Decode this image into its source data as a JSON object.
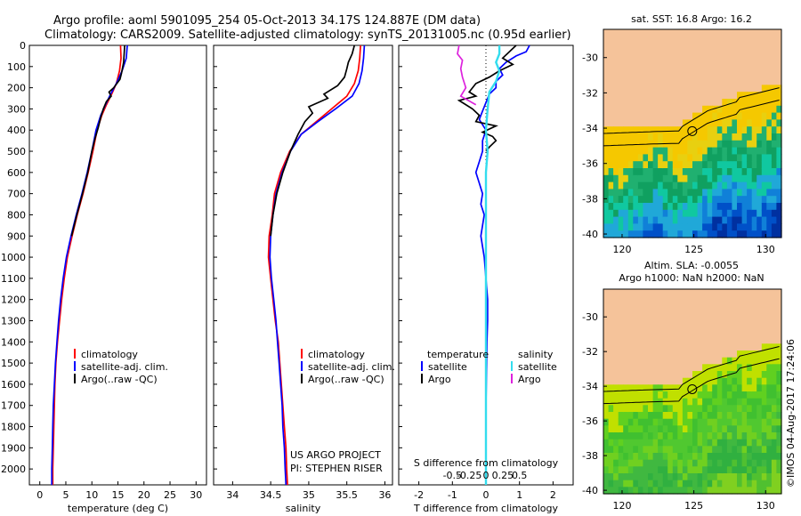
{
  "title": {
    "line1": "Argo profile: aoml 5901095_254 05-Oct-2013 34.17S 124.887E (DM data)",
    "line2": "Climatology: CARS2009. Satellite-adjusted climatology: synTS_20131005.nc (0.95d earlier)"
  },
  "colors": {
    "climatology": "#ff0000",
    "satellite": "#0000ff",
    "argo": "#000000",
    "satellite_salinity": "#33ddee",
    "argo_salinity": "#dd22dd",
    "land": "#f5c39a"
  },
  "chart_data": [
    {
      "type": "line",
      "id": "temperature",
      "xlabel": "temperature (deg C)",
      "xlim": [
        -2,
        32
      ],
      "ylim": [
        2075,
        0
      ],
      "xticks": [
        0,
        5,
        10,
        15,
        20,
        25,
        30
      ],
      "yticks": [
        0,
        100,
        200,
        300,
        400,
        500,
        600,
        700,
        800,
        900,
        1000,
        1100,
        1200,
        1300,
        1400,
        1500,
        1600,
        1700,
        1800,
        1900,
        2000
      ],
      "legend": [
        "climatology",
        "satellite-adj. clim.",
        "Argo(..raw -QC)"
      ],
      "series": [
        {
          "name": "climatology",
          "color": "#ff0000",
          "points": [
            [
              15.5,
              0
            ],
            [
              15.6,
              60
            ],
            [
              15.3,
              120
            ],
            [
              14.7,
              180
            ],
            [
              13.8,
              230
            ],
            [
              12.8,
              280
            ],
            [
              11.9,
              330
            ],
            [
              11.0,
              400
            ],
            [
              10.2,
              500
            ],
            [
              9.3,
              600
            ],
            [
              8.3,
              700
            ],
            [
              7.2,
              800
            ],
            [
              6.2,
              900
            ],
            [
              5.3,
              1000
            ],
            [
              4.7,
              1100
            ],
            [
              4.2,
              1200
            ],
            [
              3.8,
              1300
            ],
            [
              3.4,
              1400
            ],
            [
              3.1,
              1500
            ],
            [
              2.9,
              1600
            ],
            [
              2.8,
              1700
            ],
            [
              2.7,
              1800
            ],
            [
              2.6,
              1900
            ],
            [
              2.5,
              2000
            ],
            [
              2.5,
              2075
            ]
          ]
        },
        {
          "name": "satellite-adj. clim.",
          "color": "#0000ff",
          "points": [
            [
              16.8,
              0
            ],
            [
              16.6,
              60
            ],
            [
              15.8,
              120
            ],
            [
              14.7,
              180
            ],
            [
              13.6,
              230
            ],
            [
              12.6,
              280
            ],
            [
              11.7,
              330
            ],
            [
              10.8,
              400
            ],
            [
              10.0,
              500
            ],
            [
              9.1,
              600
            ],
            [
              8.1,
              700
            ],
            [
              7.0,
              800
            ],
            [
              6.0,
              900
            ],
            [
              5.1,
              1000
            ],
            [
              4.5,
              1100
            ],
            [
              4.0,
              1200
            ],
            [
              3.6,
              1300
            ],
            [
              3.3,
              1400
            ],
            [
              3.0,
              1500
            ],
            [
              2.8,
              1600
            ],
            [
              2.6,
              1700
            ],
            [
              2.5,
              1800
            ],
            [
              2.4,
              1900
            ],
            [
              2.3,
              2000
            ],
            [
              2.3,
              2075
            ]
          ]
        },
        {
          "name": "Argo(..raw -QC)",
          "color": "#000000",
          "points": [
            [
              16.3,
              0
            ],
            [
              16.2,
              40
            ],
            [
              16.1,
              80
            ],
            [
              15.7,
              130
            ],
            [
              15.4,
              160
            ],
            [
              14.2,
              200
            ],
            [
              13.3,
              220
            ],
            [
              13.7,
              240
            ],
            [
              12.8,
              265
            ],
            [
              12.2,
              300
            ],
            [
              11.7,
              340
            ],
            [
              11.2,
              390
            ],
            [
              10.6,
              440
            ],
            [
              10.0,
              500
            ],
            [
              9.2,
              600
            ],
            [
              8.2,
              700
            ],
            [
              7.1,
              800
            ],
            [
              6.1,
              900
            ]
          ]
        }
      ]
    },
    {
      "type": "line",
      "id": "salinity",
      "xlabel": "salinity",
      "xlim": [
        33.75,
        36.1
      ],
      "ylim": [
        2075,
        0
      ],
      "xticks": [
        34,
        34.5,
        35,
        35.5,
        36
      ],
      "legend": [
        "climatology",
        "satellite-adj. clim.",
        "Argo(..raw -QC)"
      ],
      "annotations": [
        "US ARGO PROJECT",
        "PI: STEPHEN RISER"
      ],
      "series": [
        {
          "name": "climatology",
          "color": "#ff0000",
          "points": [
            [
              35.68,
              0
            ],
            [
              35.67,
              60
            ],
            [
              35.65,
              120
            ],
            [
              35.6,
              180
            ],
            [
              35.5,
              240
            ],
            [
              35.3,
              300
            ],
            [
              35.1,
              360
            ],
            [
              34.9,
              420
            ],
            [
              34.75,
              500
            ],
            [
              34.63,
              600
            ],
            [
              34.55,
              700
            ],
            [
              34.52,
              800
            ],
            [
              34.48,
              900
            ],
            [
              34.47,
              1000
            ],
            [
              34.5,
              1100
            ],
            [
              34.53,
              1200
            ],
            [
              34.56,
              1300
            ],
            [
              34.6,
              1400
            ],
            [
              34.62,
              1500
            ],
            [
              34.64,
              1600
            ],
            [
              34.66,
              1700
            ],
            [
              34.68,
              1800
            ],
            [
              34.7,
              1900
            ],
            [
              34.71,
              2000
            ],
            [
              34.72,
              2075
            ]
          ]
        },
        {
          "name": "satellite-adj. clim.",
          "color": "#0000ff",
          "points": [
            [
              35.73,
              0
            ],
            [
              35.72,
              60
            ],
            [
              35.7,
              120
            ],
            [
              35.66,
              180
            ],
            [
              35.57,
              240
            ],
            [
              35.35,
              300
            ],
            [
              35.12,
              360
            ],
            [
              34.9,
              420
            ],
            [
              34.76,
              500
            ],
            [
              34.65,
              600
            ],
            [
              34.57,
              700
            ],
            [
              34.53,
              800
            ],
            [
              34.5,
              900
            ],
            [
              34.49,
              1000
            ],
            [
              34.51,
              1100
            ],
            [
              34.54,
              1200
            ],
            [
              34.57,
              1300
            ],
            [
              34.59,
              1400
            ],
            [
              34.61,
              1500
            ],
            [
              34.63,
              1600
            ],
            [
              34.65,
              1700
            ],
            [
              34.66,
              1800
            ],
            [
              34.68,
              1900
            ],
            [
              34.69,
              2000
            ],
            [
              34.7,
              2075
            ]
          ]
        },
        {
          "name": "Argo(..raw -QC)",
          "color": "#000000",
          "points": [
            [
              35.6,
              0
            ],
            [
              35.57,
              40
            ],
            [
              35.52,
              80
            ],
            [
              35.5,
              110
            ],
            [
              35.47,
              150
            ],
            [
              35.38,
              190
            ],
            [
              35.2,
              230
            ],
            [
              35.25,
              250
            ],
            [
              35.0,
              290
            ],
            [
              35.05,
              320
            ],
            [
              34.95,
              360
            ],
            [
              34.86,
              420
            ],
            [
              34.76,
              500
            ],
            [
              34.66,
              600
            ],
            [
              34.58,
              700
            ],
            [
              34.53,
              800
            ],
            [
              34.5,
              900
            ]
          ]
        }
      ]
    },
    {
      "type": "line",
      "id": "differences",
      "xlabel": "T difference from climatology",
      "xlabel_top": "S difference from climatology",
      "xlim": [
        -2.6,
        2.6
      ],
      "ylim": [
        2075,
        0
      ],
      "xticks": [
        -2,
        -1,
        0,
        1,
        2
      ],
      "sticks": [
        {
          "v": -1,
          "label": "-0.5"
        },
        {
          "v": -0.5,
          "label": "-0.25"
        },
        {
          "v": 0,
          "label": "0"
        },
        {
          "v": 0.5,
          "label": "0.25"
        },
        {
          "v": 1,
          "label": "0.5"
        }
      ],
      "legend_left_title": "temperature",
      "legend_right_title": "salinity",
      "legend_left": [
        "satellite",
        "Argo"
      ],
      "legend_right": [
        "satellite",
        "Argo"
      ],
      "series": [
        {
          "name": "satellite",
          "color": "#0000ff",
          "points": [
            [
              1.3,
              0
            ],
            [
              1.2,
              30
            ],
            [
              0.9,
              50
            ],
            [
              0.6,
              80
            ],
            [
              0.4,
              110
            ],
            [
              0.5,
              140
            ],
            [
              0.3,
              170
            ],
            [
              0.3,
              200
            ],
            [
              0.1,
              230
            ],
            [
              0.0,
              270
            ],
            [
              -0.1,
              310
            ],
            [
              -0.2,
              350
            ],
            [
              0.0,
              400
            ],
            [
              -0.1,
              450
            ],
            [
              -0.1,
              500
            ],
            [
              -0.2,
              550
            ],
            [
              -0.3,
              600
            ],
            [
              -0.2,
              650
            ],
            [
              -0.1,
              700
            ],
            [
              -0.15,
              750
            ],
            [
              -0.05,
              800
            ],
            [
              -0.1,
              850
            ],
            [
              -0.15,
              900
            ],
            [
              -0.1,
              950
            ],
            [
              -0.05,
              1000
            ],
            [
              0.0,
              1100
            ],
            [
              0.05,
              1200
            ],
            [
              0.05,
              1300
            ],
            [
              0.03,
              1400
            ],
            [
              0.02,
              1500
            ],
            [
              0.01,
              1600
            ],
            [
              0.0,
              1700
            ],
            [
              0.0,
              1800
            ],
            [
              0.0,
              1900
            ],
            [
              0.0,
              2000
            ],
            [
              0.0,
              2075
            ]
          ]
        },
        {
          "name": "Argo",
          "color": "#000000",
          "points": [
            [
              0.9,
              0
            ],
            [
              0.7,
              30
            ],
            [
              0.5,
              60
            ],
            [
              0.8,
              90
            ],
            [
              0.4,
              120
            ],
            [
              0.1,
              150
            ],
            [
              -0.3,
              180
            ],
            [
              -0.5,
              220
            ],
            [
              -0.3,
              240
            ],
            [
              -0.8,
              260
            ],
            [
              -0.4,
              300
            ],
            [
              -0.2,
              330
            ],
            [
              -0.3,
              360
            ],
            [
              0.3,
              380
            ],
            [
              -0.1,
              410
            ],
            [
              0.2,
              430
            ],
            [
              0.3,
              450
            ],
            [
              0.1,
              480
            ],
            [
              0.0,
              500
            ]
          ]
        },
        {
          "name": "satellite",
          "color": "#33ddee",
          "points": [
            [
              0.4,
              0
            ],
            [
              0.4,
              40
            ],
            [
              0.3,
              80
            ],
            [
              0.4,
              120
            ],
            [
              0.3,
              170
            ],
            [
              0.1,
              220
            ],
            [
              0.05,
              300
            ],
            [
              0.0,
              400
            ],
            [
              0.05,
              500
            ],
            [
              0.0,
              600
            ],
            [
              0.0,
              700
            ],
            [
              0.0,
              800
            ],
            [
              0.0,
              900
            ],
            [
              0.0,
              1000
            ],
            [
              0.0,
              1200
            ],
            [
              0.0,
              1400
            ],
            [
              0.0,
              1600
            ],
            [
              0.0,
              1800
            ],
            [
              0.0,
              2000
            ],
            [
              0.0,
              2075
            ]
          ]
        },
        {
          "name": "Argo",
          "color": "#dd22dd",
          "points": [
            [
              -0.8,
              0
            ],
            [
              -0.85,
              40
            ],
            [
              -0.7,
              70
            ],
            [
              -0.75,
              110
            ],
            [
              -0.7,
              150
            ],
            [
              -0.6,
              200
            ],
            [
              -0.75,
              240
            ],
            [
              -0.3,
              280
            ]
          ]
        }
      ]
    },
    {
      "type": "heatmap",
      "id": "sst_map",
      "title": "sat. SST: 16.8 Argo: 16.2",
      "xticks": [
        120,
        125,
        130
      ],
      "yticks": [
        -30,
        -32,
        -34,
        -36,
        -38,
        -40
      ],
      "xlim": [
        118.7,
        131.1
      ],
      "ylim": [
        -40.2,
        -28.4
      ],
      "argo_marker": [
        124.887,
        -34.17
      ]
    },
    {
      "type": "heatmap",
      "id": "sla_map",
      "title": "Altim. SLA: -0.0055",
      "subtitle": "Argo h1000: NaN h2000: NaN",
      "xticks": [
        120,
        125,
        130
      ],
      "yticks": [
        -30,
        -32,
        -34,
        -36,
        -38,
        -40
      ],
      "xlim": [
        118.7,
        131.1
      ],
      "ylim": [
        -40.2,
        -28.4
      ],
      "argo_marker": [
        124.887,
        -34.17
      ]
    }
  ],
  "credit": "©IMOS 04-Aug-2017 17:24:06"
}
